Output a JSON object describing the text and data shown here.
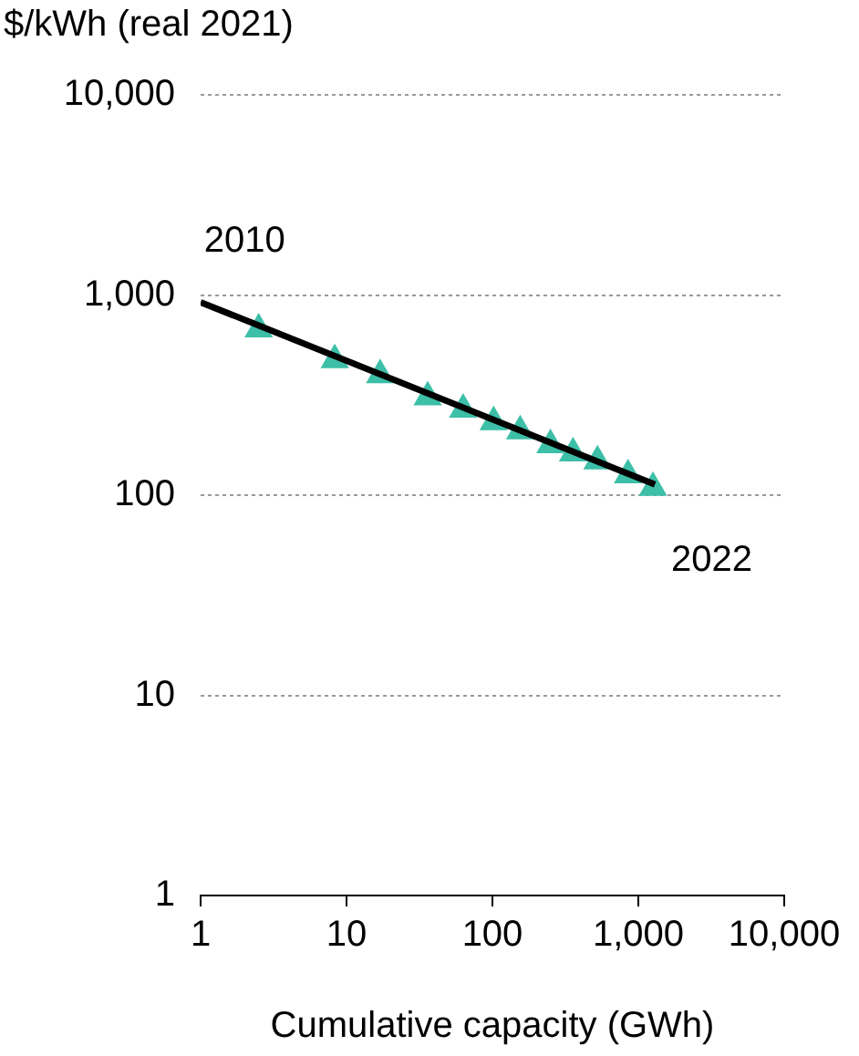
{
  "chart_data": {
    "type": "scatter",
    "ylabel": "$/kWh (real 2021)",
    "xlabel": "Cumulative capacity (GWh)",
    "log": "xy",
    "grid": "y",
    "legend": false,
    "xlim": [
      1,
      10000
    ],
    "xticks": [
      1,
      10,
      100,
      {
        "value": 1000,
        "label": "1,000"
      },
      {
        "value": 10000,
        "label": "10,000"
      }
    ],
    "ylim": [
      1,
      10000
    ],
    "yticks": [
      1,
      10,
      100,
      {
        "value": 1000,
        "label": "1,000"
      },
      {
        "value": 10000,
        "label": "10,000"
      }
    ],
    "series": [
      {
        "marker": "triangle",
        "color": "#3dbfa8",
        "x": [
          2.5,
          8.3,
          17,
          36,
          63,
          102,
          155,
          250,
          357,
          525,
          850,
          1260
        ],
        "values": [
          675,
          473,
          398,
          309,
          268,
          232,
          209,
          178,
          162,
          148,
          126,
          109
        ]
      },
      {
        "type": "line",
        "marker": "none",
        "color": "#000000",
        "x": [
          1,
          1300
        ],
        "values": [
          920,
          113
        ]
      }
    ],
    "annotations": [
      {
        "text": "2010",
        "x": 2.5,
        "y": 675
      },
      {
        "text": "2022",
        "x": 1260,
        "y": 109
      }
    ]
  }
}
